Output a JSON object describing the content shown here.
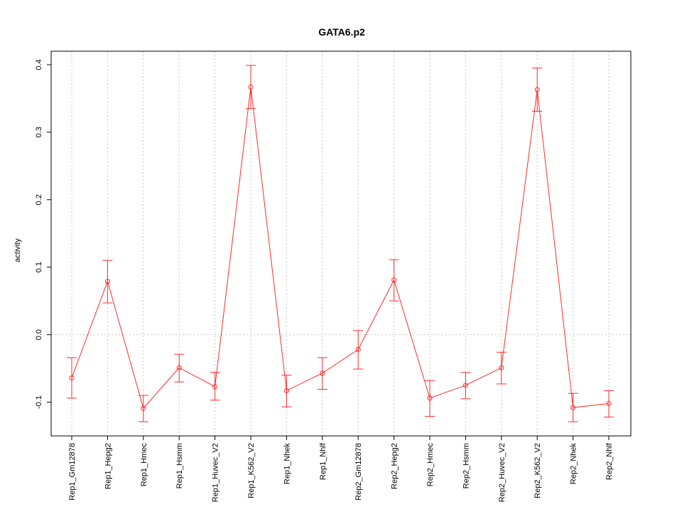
{
  "chart_data": {
    "type": "line",
    "title": "GATA6.p2",
    "xlabel": "",
    "ylabel": "activity",
    "ylim": [
      -0.15,
      0.42
    ],
    "yticks": [
      -0.1,
      0.0,
      0.1,
      0.2,
      0.3,
      0.4
    ],
    "ytick_labels": [
      "-0.1",
      "0.0",
      "0.1",
      "0.2",
      "0.3",
      "0.4"
    ],
    "grid": true,
    "color": "#ff2a2a",
    "categories": [
      "Rep1_Gm12878",
      "Rep1_Hepg2",
      "Rep1_Hmec",
      "Rep1_Hsmm",
      "Rep1_Huvec_V2",
      "Rep1_K562_V2",
      "Rep1_Nhek",
      "Rep1_Nhlf",
      "Rep2_Gm12878",
      "Rep2_Hepg2",
      "Rep2_Hmec",
      "Rep2_Hsmm",
      "Rep2_Huvec_V2",
      "Rep2_K562_V2",
      "Rep2_Nhek",
      "Rep2_Nhlf"
    ],
    "values": [
      -0.064,
      0.079,
      -0.109,
      -0.049,
      -0.077,
      0.367,
      -0.083,
      -0.057,
      -0.022,
      0.081,
      -0.094,
      -0.075,
      -0.049,
      0.363,
      -0.108,
      -0.102
    ],
    "err_low": [
      -0.094,
      0.047,
      -0.129,
      -0.07,
      -0.097,
      0.335,
      -0.107,
      -0.081,
      -0.051,
      0.05,
      -0.121,
      -0.095,
      -0.073,
      0.331,
      -0.129,
      -0.122
    ],
    "err_high": [
      -0.034,
      0.11,
      -0.09,
      -0.029,
      -0.056,
      0.399,
      -0.06,
      -0.034,
      0.006,
      0.111,
      -0.068,
      -0.056,
      -0.026,
      0.395,
      -0.087,
      -0.083
    ]
  }
}
